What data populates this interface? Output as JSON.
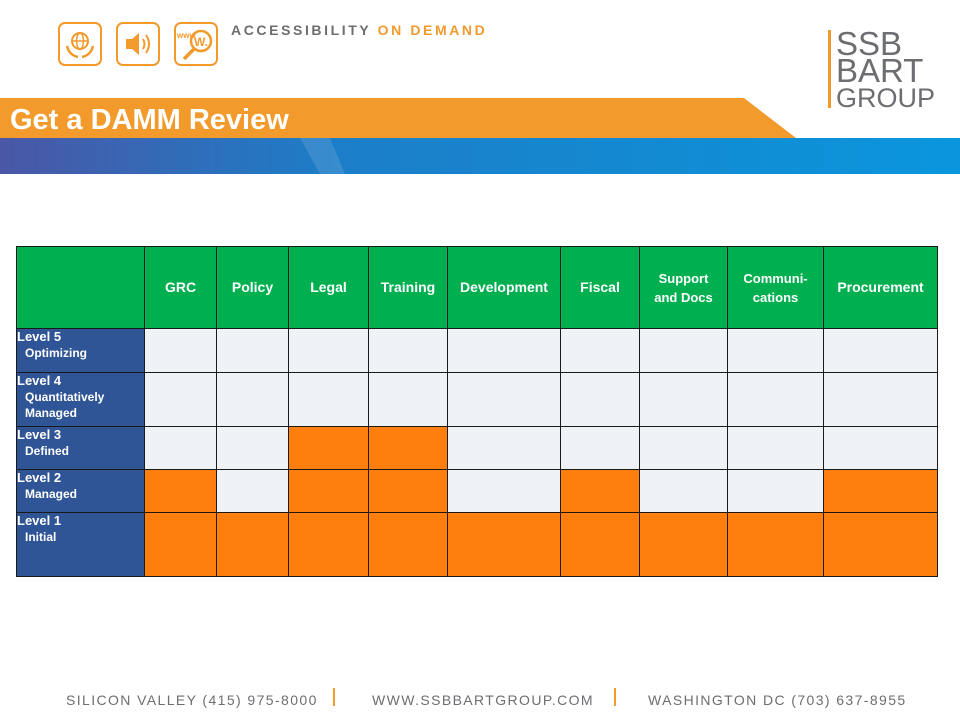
{
  "header": {
    "tagline_part1": "ACCESSIBILITY",
    "tagline_part2": "ON DEMAND",
    "icons": [
      "globe-hands-icon",
      "speaker-icon",
      "web-magnifier-icon"
    ],
    "www_text": "www",
    "w_text": "W."
  },
  "logo": {
    "line1": "SSB",
    "line2": "BART",
    "line3": "GROUP"
  },
  "title": "Get a DAMM Review",
  "colors": {
    "orange_band": "#f39a2d",
    "blue_band": "#0a8fd8",
    "header_green": "#00b050",
    "row_blue": "#2f5597",
    "cell_orange": "#ff7f0e",
    "cell_empty": "#eef1f5"
  },
  "table": {
    "columns": [
      "GRC",
      "Policy",
      "Legal",
      "Training",
      "Development",
      "Fiscal",
      "Support and Docs",
      "Communi-cations",
      "Procurement"
    ],
    "column_lines": [
      [
        "GRC"
      ],
      [
        "Policy"
      ],
      [
        "Legal"
      ],
      [
        "Training"
      ],
      [
        "Development"
      ],
      [
        "Fiscal"
      ],
      [
        "Support",
        "and Docs"
      ],
      [
        "Communi-",
        "cations"
      ],
      [
        "Procurement"
      ]
    ],
    "rows": [
      {
        "level": "Level 5",
        "sub": "Optimizing",
        "sub2": "",
        "filled": [
          0,
          0,
          0,
          0,
          0,
          0,
          0,
          0,
          0
        ]
      },
      {
        "level": "Level 4",
        "sub": "Quantitatively",
        "sub2": "Managed",
        "filled": [
          0,
          0,
          0,
          0,
          0,
          0,
          0,
          0,
          0
        ]
      },
      {
        "level": "Level 3",
        "sub": "Defined",
        "sub2": "",
        "filled": [
          0,
          0,
          1,
          1,
          0,
          0,
          0,
          0,
          0
        ]
      },
      {
        "level": "Level 2",
        "sub": "Managed",
        "sub2": "",
        "filled": [
          1,
          0,
          1,
          1,
          0,
          1,
          0,
          0,
          1
        ]
      },
      {
        "level": "Level 1",
        "sub": "Initial",
        "sub2": "",
        "filled": [
          1,
          1,
          1,
          1,
          1,
          1,
          1,
          1,
          1
        ]
      }
    ]
  },
  "footer": {
    "left": "SILICON VALLEY (415) 975-8000",
    "middle": "WWW.SSBBARTGROUP.COM",
    "right": "WASHINGTON DC  (703) 637-8955"
  }
}
